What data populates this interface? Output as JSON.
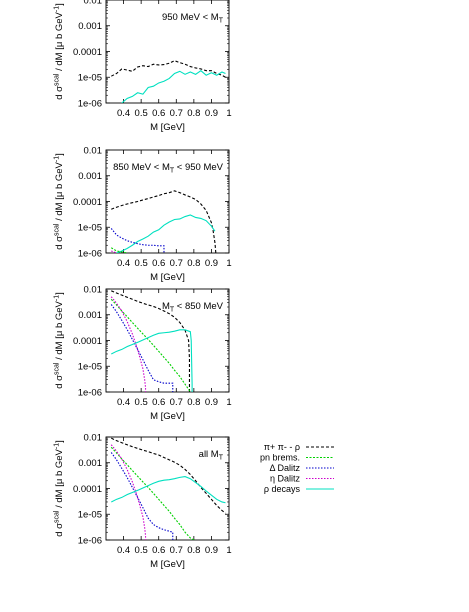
{
  "y_axis_label": "d σ^{scal} / dM [μ b GeV^{-1}]",
  "chart_data": [
    {
      "type": "line",
      "annotation": "950 MeV < M_T",
      "xlabel": "M [GeV]",
      "ylabel": "d σscal / dM [μ b GeV-1]",
      "xlim": [
        0.3,
        1.0
      ],
      "ylim": [
        1e-06,
        0.01
      ],
      "y_scale": "log",
      "x_ticks": [
        "0.4",
        "0.5",
        "0.6",
        "0.7",
        "0.8",
        "0.9",
        "1"
      ],
      "y_ticks": [
        "0.01",
        "0.001",
        "0.0001",
        "1e-05",
        "1e-06"
      ],
      "series": [
        {
          "key": "pipi_rho",
          "x": [
            0.33,
            0.36,
            0.39,
            0.42,
            0.45,
            0.48,
            0.51,
            0.54,
            0.57,
            0.6,
            0.63,
            0.66,
            0.69,
            0.72,
            0.75,
            0.78,
            0.81,
            0.84,
            0.87,
            0.9,
            0.93,
            0.96,
            0.98
          ],
          "y": [
            1.1e-05,
            1.4e-05,
            2.1e-05,
            1.9e-05,
            1.7e-05,
            2.5e-05,
            2.8e-05,
            2.6e-05,
            3.2e-05,
            3e-05,
            3.1e-05,
            3.5e-05,
            4.4e-05,
            3.7e-05,
            3.2e-05,
            2.6e-05,
            2.3e-05,
            2.1e-05,
            1.8e-05,
            1.8e-05,
            1.4e-05,
            1.2e-05,
            1e-05
          ]
        },
        {
          "key": "rho_decays",
          "x": [
            0.39,
            0.42,
            0.45,
            0.48,
            0.51,
            0.54,
            0.57,
            0.6,
            0.63,
            0.66,
            0.69,
            0.72,
            0.75,
            0.78,
            0.81,
            0.84,
            0.87,
            0.9,
            0.93,
            0.96,
            0.98
          ],
          "y": [
            1e-06,
            1.5e-06,
            1.8e-06,
            2.5e-06,
            2.2e-06,
            4e-06,
            4.5e-06,
            6e-06,
            7e-06,
            9e-06,
            1.4e-05,
            1.7e-05,
            1.3e-05,
            1.6e-05,
            1.3e-05,
            1.8e-05,
            1.2e-05,
            1.5e-05,
            1.2e-05,
            1.6e-05,
            1.4e-05
          ]
        }
      ]
    },
    {
      "type": "line",
      "annotation": "850 MeV < M_T < 950 MeV",
      "xlabel": "M [GeV]",
      "ylabel": "d σscal / dM [μ b GeV-1]",
      "xlim": [
        0.3,
        1.0
      ],
      "ylim": [
        1e-06,
        0.01
      ],
      "y_scale": "log",
      "x_ticks": [
        "0.4",
        "0.5",
        "0.6",
        "0.7",
        "0.8",
        "0.9",
        "1"
      ],
      "y_ticks": [
        "0.01",
        "0.001",
        "0.0001",
        "1e-05",
        "1e-06"
      ],
      "series": [
        {
          "key": "pipi_rho",
          "x": [
            0.33,
            0.36,
            0.39,
            0.42,
            0.45,
            0.48,
            0.51,
            0.54,
            0.57,
            0.6,
            0.63,
            0.66,
            0.69,
            0.72,
            0.75,
            0.78,
            0.81,
            0.84,
            0.87,
            0.9,
            0.91,
            0.92,
            0.925
          ],
          "y": [
            5e-05,
            6e-05,
            7e-05,
            8e-05,
            9e-05,
            0.0001,
            0.000115,
            0.00013,
            0.00015,
            0.00017,
            0.0002,
            0.00022,
            0.00026,
            0.00022,
            0.00018,
            0.00015,
            0.00012,
            8e-05,
            4.5e-05,
            1.5e-05,
            7e-06,
            2.5e-06,
            1e-06
          ]
        },
        {
          "key": "rho_decays",
          "x": [
            0.36,
            0.39,
            0.42,
            0.45,
            0.48,
            0.51,
            0.54,
            0.57,
            0.6,
            0.63,
            0.66,
            0.69,
            0.72,
            0.75,
            0.78,
            0.81,
            0.84,
            0.87,
            0.9,
            0.92
          ],
          "y": [
            1e-06,
            1.2e-06,
            1.5e-06,
            2e-06,
            2.8e-06,
            3.5e-06,
            4.5e-06,
            6.5e-06,
            8e-06,
            1.2e-05,
            1.6e-05,
            2e-05,
            2.1e-05,
            2.6e-05,
            3e-05,
            2.4e-05,
            2.2e-05,
            1.8e-05,
            1.1e-05,
            7e-06
          ]
        },
        {
          "key": "delta_dalitz",
          "x": [
            0.33,
            0.36,
            0.39,
            0.42,
            0.45,
            0.48,
            0.51,
            0.54,
            0.57,
            0.6,
            0.63,
            0.63
          ],
          "y": [
            9e-06,
            5e-06,
            3.8e-06,
            3e-06,
            2.6e-06,
            2.3e-06,
            2.1e-06,
            2e-06,
            2e-06,
            1.9e-06,
            1.9e-06,
            1e-06
          ]
        },
        {
          "key": "pn_brems",
          "x": [
            0.33,
            0.36,
            0.39,
            0.42
          ],
          "y": [
            1.6e-06,
            1.2e-06,
            1.1e-06,
            1e-06
          ]
        },
        {
          "key": "eta_dalitz",
          "x": [
            0.33,
            0.36
          ],
          "y": [
            1.2e-06,
            1e-06
          ]
        }
      ]
    },
    {
      "type": "line",
      "annotation": "M_T < 850 MeV",
      "xlabel": "M [GeV]",
      "ylabel": "d σscal / dM [μ b GeV-1]",
      "xlim": [
        0.3,
        1.0
      ],
      "ylim": [
        1e-06,
        0.01
      ],
      "y_scale": "log",
      "x_ticks": [
        "0.4",
        "0.5",
        "0.6",
        "0.7",
        "0.8",
        "0.9",
        "1"
      ],
      "y_ticks": [
        "0.01",
        "0.001",
        "0.0001",
        "1e-05",
        "1e-06"
      ],
      "series": [
        {
          "key": "pipi_rho",
          "x": [
            0.33,
            0.36,
            0.39,
            0.42,
            0.45,
            0.48,
            0.51,
            0.54,
            0.57,
            0.6,
            0.63,
            0.66,
            0.69,
            0.72,
            0.75,
            0.77,
            0.775,
            0.775
          ],
          "y": [
            0.0085,
            0.007,
            0.0058,
            0.0048,
            0.004,
            0.0033,
            0.0028,
            0.0024,
            0.0021,
            0.00175,
            0.0014,
            0.0011,
            0.0008,
            0.0005,
            0.00025,
            0.0001,
            2e-05,
            1e-06
          ]
        },
        {
          "key": "pn_brems",
          "x": [
            0.33,
            0.36,
            0.39,
            0.42,
            0.45,
            0.48,
            0.51,
            0.54,
            0.57,
            0.6,
            0.63,
            0.66,
            0.69,
            0.72,
            0.75,
            0.78
          ],
          "y": [
            0.004,
            0.0024,
            0.0014,
            0.00085,
            0.0005,
            0.0003,
            0.00018,
            0.00011,
            6.5e-05,
            3.8e-05,
            2.2e-05,
            1.3e-05,
            7e-06,
            4e-06,
            2e-06,
            1e-06
          ]
        },
        {
          "key": "delta_dalitz",
          "x": [
            0.33,
            0.36,
            0.39,
            0.42,
            0.45,
            0.48,
            0.51,
            0.54,
            0.57,
            0.6,
            0.63,
            0.66,
            0.68,
            0.68
          ],
          "y": [
            0.0025,
            0.0013,
            0.0006,
            0.00027,
            0.00011,
            4.5e-05,
            1.8e-05,
            7e-06,
            3e-06,
            2.5e-06,
            2.2e-06,
            2.2e-06,
            2.2e-06,
            1e-06
          ]
        },
        {
          "key": "eta_dalitz",
          "x": [
            0.33,
            0.36,
            0.39,
            0.42,
            0.45,
            0.48,
            0.51,
            0.52,
            0.525,
            0.525
          ],
          "y": [
            0.005,
            0.0028,
            0.0014,
            0.00055,
            0.00018,
            4.5e-05,
            8e-06,
            3e-06,
            1.5e-06,
            1e-06
          ]
        },
        {
          "key": "rho_decays",
          "x": [
            0.33,
            0.36,
            0.39,
            0.42,
            0.45,
            0.48,
            0.51,
            0.54,
            0.57,
            0.6,
            0.63,
            0.66,
            0.69,
            0.72,
            0.75,
            0.78,
            0.785,
            0.79,
            0.79
          ],
          "y": [
            3e-05,
            3.8e-05,
            4.5e-05,
            5.8e-05,
            7e-05,
            8.5e-05,
            0.000105,
            0.00013,
            0.00016,
            0.00019,
            0.0002,
            0.00021,
            0.00023,
            0.00026,
            0.00026,
            0.00022,
            0.0001,
            2e-06,
            1e-06
          ]
        }
      ]
    },
    {
      "type": "line",
      "annotation": "all M_T",
      "xlabel": "M [GeV]",
      "ylabel": "d σscal / dM [μ b GeV-1]",
      "xlim": [
        0.3,
        1.0
      ],
      "ylim": [
        1e-06,
        0.01
      ],
      "y_scale": "log",
      "x_ticks": [
        "0.4",
        "0.5",
        "0.6",
        "0.7",
        "0.8",
        "0.9",
        "1"
      ],
      "y_ticks": [
        "0.01",
        "0.001",
        "0.0001",
        "1e-05",
        "1e-06"
      ],
      "series": [
        {
          "key": "pipi_rho",
          "x": [
            0.33,
            0.36,
            0.39,
            0.42,
            0.45,
            0.48,
            0.51,
            0.54,
            0.57,
            0.6,
            0.63,
            0.66,
            0.69,
            0.72,
            0.75,
            0.78,
            0.81,
            0.84,
            0.87,
            0.9,
            0.93,
            0.96,
            0.98
          ],
          "y": [
            0.009,
            0.0072,
            0.006,
            0.005,
            0.0042,
            0.0036,
            0.0031,
            0.0027,
            0.0023,
            0.002,
            0.0016,
            0.0013,
            0.00105,
            0.0008,
            0.00055,
            0.00035,
            0.0002,
            0.00011,
            6.5e-05,
            3.8e-05,
            2.2e-05,
            1.4e-05,
            1.1e-05
          ]
        },
        {
          "key": "pn_brems",
          "x": [
            0.33,
            0.36,
            0.39,
            0.42,
            0.45,
            0.48,
            0.51,
            0.54,
            0.57,
            0.6,
            0.63,
            0.66,
            0.69,
            0.72,
            0.75,
            0.78,
            0.8
          ],
          "y": [
            0.004,
            0.0024,
            0.0014,
            0.00085,
            0.0005,
            0.0003,
            0.00018,
            0.00011,
            6.5e-05,
            3.8e-05,
            2.2e-05,
            1.3e-05,
            7e-06,
            4e-06,
            2e-06,
            1.2e-06,
            1e-06
          ]
        },
        {
          "key": "delta_dalitz",
          "x": [
            0.33,
            0.36,
            0.39,
            0.42,
            0.45,
            0.48,
            0.51,
            0.54,
            0.57,
            0.6,
            0.63,
            0.66,
            0.68,
            0.68
          ],
          "y": [
            0.0025,
            0.0013,
            0.0006,
            0.00027,
            0.00011,
            4.5e-05,
            1.8e-05,
            7e-06,
            4e-06,
            3e-06,
            2.5e-06,
            2.2e-06,
            2e-06,
            1e-06
          ]
        },
        {
          "key": "eta_dalitz",
          "x": [
            0.33,
            0.36,
            0.39,
            0.42,
            0.45,
            0.48,
            0.51,
            0.52,
            0.525,
            0.525
          ],
          "y": [
            0.005,
            0.0028,
            0.0014,
            0.00055,
            0.00018,
            4.5e-05,
            8e-06,
            3e-06,
            1.5e-06,
            1e-06
          ]
        },
        {
          "key": "rho_decays",
          "x": [
            0.33,
            0.36,
            0.39,
            0.42,
            0.45,
            0.48,
            0.51,
            0.54,
            0.57,
            0.6,
            0.63,
            0.66,
            0.69,
            0.72,
            0.75,
            0.78,
            0.81,
            0.84,
            0.87,
            0.9,
            0.93,
            0.96,
            0.98
          ],
          "y": [
            3e-05,
            3.8e-05,
            4.5e-05,
            5.8e-05,
            7e-05,
            8.5e-05,
            0.000105,
            0.00013,
            0.00016,
            0.00019,
            0.00021,
            0.00022,
            0.00024,
            0.00027,
            0.00029,
            0.00024,
            0.00017,
            0.00012,
            8e-05,
            5.5e-05,
            3.8e-05,
            3e-05,
            2.8e-05
          ]
        }
      ]
    }
  ],
  "legend": [
    {
      "key": "pipi_rho",
      "label": "π+ π- - ρ",
      "color": "#000000",
      "dash": "3,2"
    },
    {
      "key": "pn_brems",
      "label": "pn brems.",
      "color": "#00d000",
      "dash": "2,1.5"
    },
    {
      "key": "delta_dalitz",
      "label": "Δ Dalitz",
      "color": "#0000cc",
      "dash": "1.5,1.5"
    },
    {
      "key": "eta_dalitz",
      "label": "η Dalitz",
      "color": "#cc00cc",
      "dash": "1.5,1.5"
    },
    {
      "key": "rho_decays",
      "label": "ρ decays",
      "color": "#00e0c0",
      "dash": "none"
    }
  ]
}
